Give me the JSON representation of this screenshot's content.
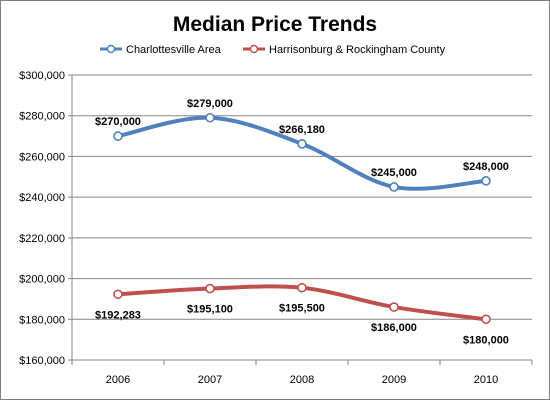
{
  "chart_data": {
    "type": "line",
    "title": "Median Price Trends",
    "xlabel": "",
    "ylabel": "",
    "categories": [
      "2006",
      "2007",
      "2008",
      "2009",
      "2010"
    ],
    "ylim": [
      160000,
      300000
    ],
    "yticks": [
      160000,
      180000,
      200000,
      220000,
      240000,
      260000,
      280000,
      300000
    ],
    "ytick_labels": [
      "$160,000",
      "$180,000",
      "$200,000",
      "$220,000",
      "$240,000",
      "$260,000",
      "$280,000",
      "$300,000"
    ],
    "grid": true,
    "smooth": true,
    "legend_position": "top",
    "series": [
      {
        "name": "Charlottesville Area",
        "color": "#4f81bd",
        "values": [
          270000,
          279000,
          266180,
          245000,
          248000
        ],
        "labels": [
          "$270,000",
          "$279,000",
          "$266,180",
          "$245,000",
          "$248,000"
        ],
        "label_position": "above"
      },
      {
        "name": "Harrisonburg & Rockingham County",
        "color": "#c0504d",
        "values": [
          192283,
          195100,
          195500,
          186000,
          180000
        ],
        "labels": [
          "$192,283",
          "$195,100",
          "$195,500",
          "$186,000",
          "$180,000"
        ],
        "label_position": "below"
      }
    ]
  }
}
